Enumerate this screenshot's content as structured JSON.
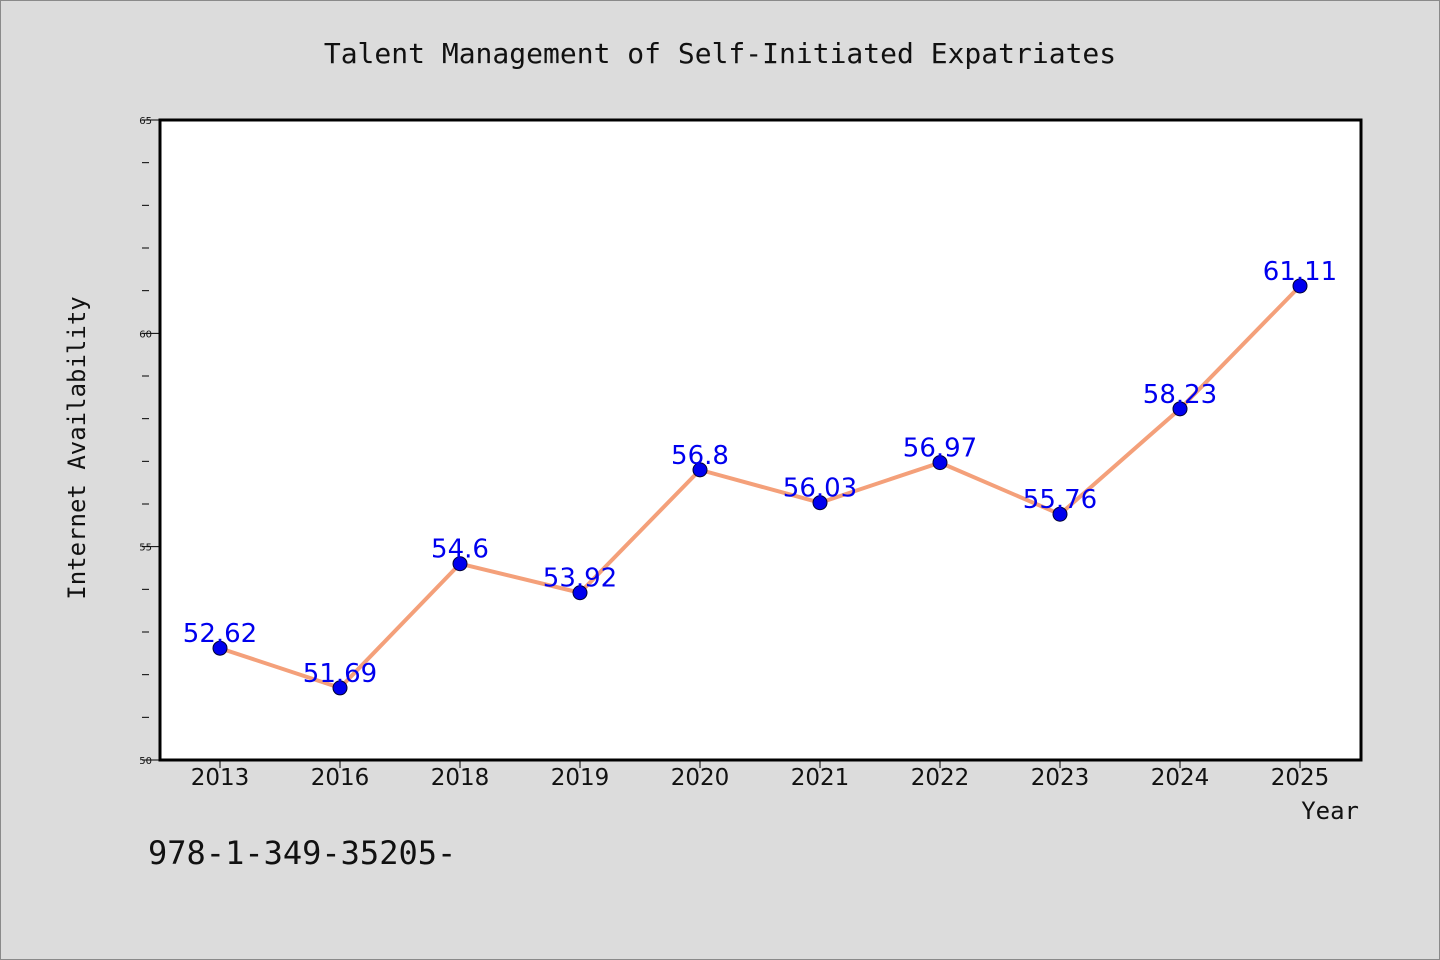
{
  "chart_data": {
    "type": "line",
    "title": "Talent Management of Self-Initiated Expatriates",
    "xlabel": "Year",
    "ylabel": "Internet Availability",
    "categories": [
      "2013",
      "2016",
      "2018",
      "2019",
      "2020",
      "2021",
      "2022",
      "2023",
      "2024",
      "2025"
    ],
    "series": [
      {
        "values": [
          52.62,
          51.69,
          54.6,
          53.92,
          56.8,
          56.03,
          56.97,
          55.76,
          58.23,
          61.11
        ],
        "line_color": "#f4a07a",
        "marker_color": "#0000ee"
      }
    ],
    "data_labels": [
      "52.62",
      "51.69",
      "54.6",
      "53.92",
      "56.8",
      "56.03",
      "56.97",
      "55.76",
      "58.23",
      "61.11"
    ],
    "data_label_color": "#0000ee",
    "ylim": [
      50,
      65
    ],
    "y_ticks": [
      "50",
      "55",
      "60",
      "65"
    ],
    "grid": false,
    "legend": "none"
  },
  "footer": {
    "text": "978-1-349-35205-"
  }
}
